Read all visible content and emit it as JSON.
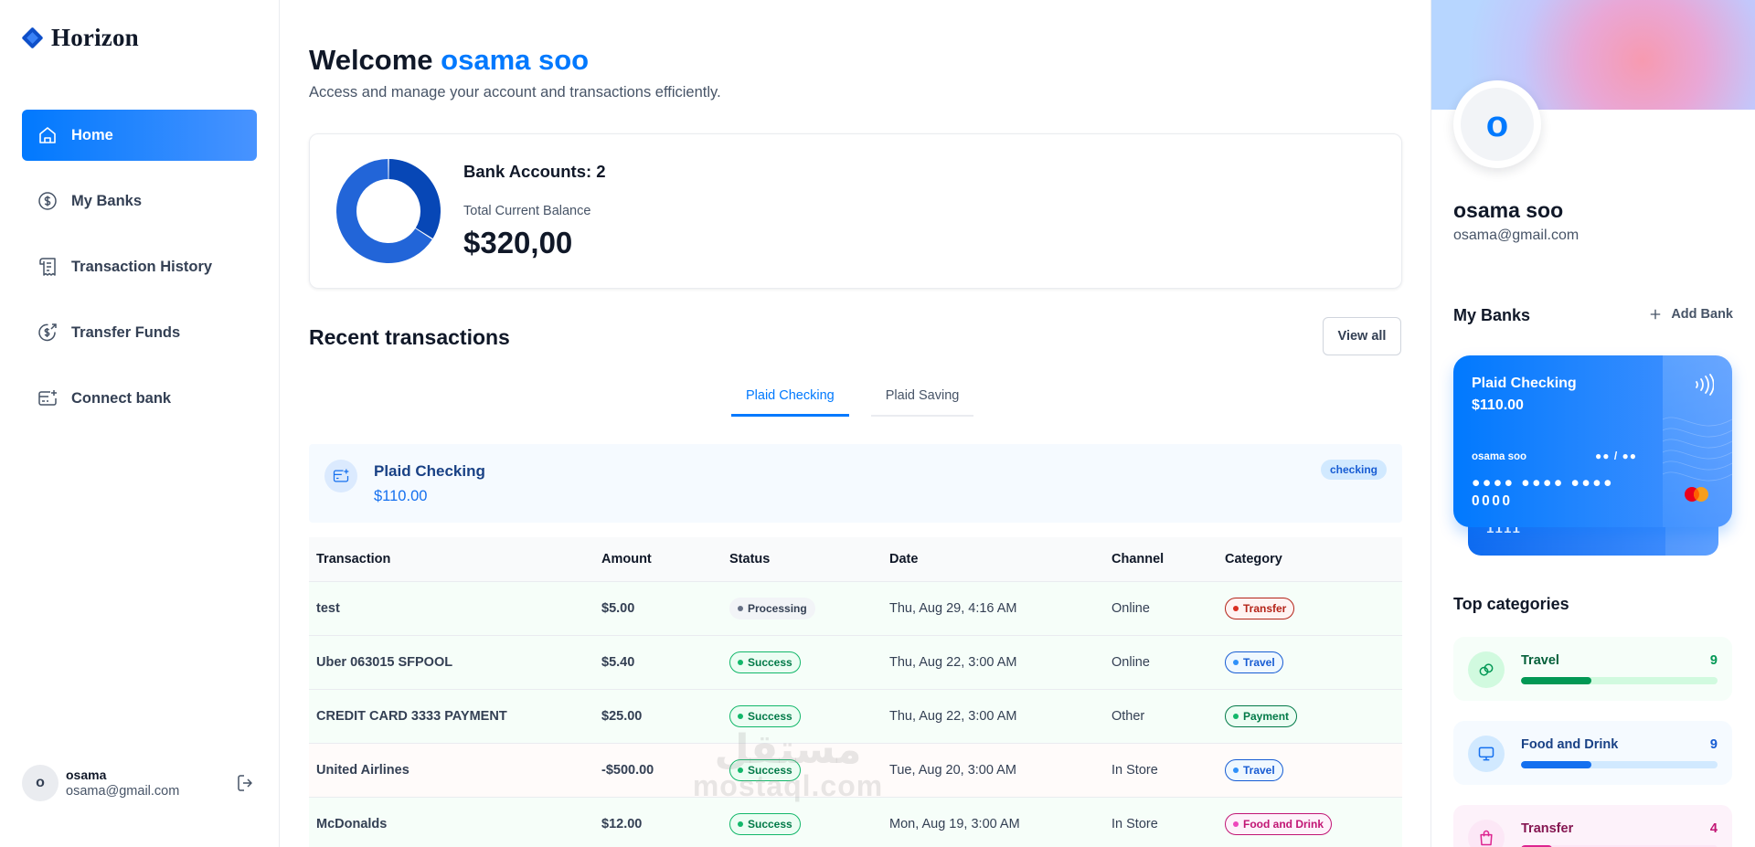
{
  "app": {
    "name": "Horizon"
  },
  "sidebar": {
    "items": [
      {
        "label": "Home",
        "icon": "home-icon",
        "active": true
      },
      {
        "label": "My Banks",
        "icon": "dollar-circle-icon",
        "active": false
      },
      {
        "label": "Transaction History",
        "icon": "receipt-icon",
        "active": false
      },
      {
        "label": "Transfer Funds",
        "icon": "money-send-icon",
        "active": false
      },
      {
        "label": "Connect bank",
        "icon": "card-add-icon",
        "active": false
      }
    ],
    "user": {
      "initial": "o",
      "name": "osama",
      "email": "osama@gmail.com"
    }
  },
  "header": {
    "greeting": "Welcome",
    "user_name": "osama soo",
    "subtext": "Access and manage your account and transactions efficiently."
  },
  "balance": {
    "accounts_label": "Bank Accounts: 2",
    "total_label": "Total Current Balance",
    "total_amount": "$320,00"
  },
  "recent": {
    "title": "Recent transactions",
    "view_all": "View all",
    "tabs": [
      "Plaid Checking",
      "Plaid Saving"
    ],
    "active_tab": 0,
    "account": {
      "name": "Plaid Checking",
      "balance": "$110.00",
      "type_badge": "checking"
    },
    "columns": [
      "Transaction",
      "Amount",
      "Status",
      "Date",
      "Channel",
      "Category"
    ],
    "rows": [
      {
        "name": "test",
        "amount": "$5.00",
        "status": "Processing",
        "date": "Thu, Aug 29, 4:16 AM",
        "channel": "Online",
        "category": "Transfer"
      },
      {
        "name": "Uber 063015 SFPOOL",
        "amount": "$5.40",
        "status": "Success",
        "date": "Thu, Aug 22, 3:00 AM",
        "channel": "Online",
        "category": "Travel"
      },
      {
        "name": "CREDIT CARD 3333 PAYMENT",
        "amount": "$25.00",
        "status": "Success",
        "date": "Thu, Aug 22, 3:00 AM",
        "channel": "Other",
        "category": "Payment"
      },
      {
        "name": "United Airlines",
        "amount": "-$500.00",
        "status": "Success",
        "date": "Tue, Aug 20, 3:00 AM",
        "channel": "In Store",
        "category": "Travel"
      },
      {
        "name": "McDonalds",
        "amount": "$12.00",
        "status": "Success",
        "date": "Mon, Aug 19, 3:00 AM",
        "channel": "In Store",
        "category": "Food and Drink"
      }
    ]
  },
  "watermark": {
    "arabic": "مستقل",
    "latin": "mostaql.com"
  },
  "profile": {
    "initial": "o",
    "name": "osama soo",
    "email": "osama@gmail.com"
  },
  "banks": {
    "title": "My Banks",
    "add_label": "Add Bank",
    "card": {
      "name": "Plaid Checking",
      "balance": "$110.00",
      "owner": "osama soo",
      "expiry": "●● / ●●",
      "number": "●●●● ●●●● ●●●● 0000"
    },
    "back_card_text": "1111"
  },
  "categories": {
    "title": "Top categories",
    "items": [
      {
        "name": "Travel",
        "count": "9",
        "fill": 0.36,
        "icon": "link-icon"
      },
      {
        "name": "Food and Drink",
        "count": "9",
        "fill": 0.36,
        "icon": "monitor-icon"
      },
      {
        "name": "Transfer",
        "count": "4",
        "fill": 0.16,
        "icon": "bag-icon"
      }
    ]
  },
  "colors": {
    "accent": "#0179fe",
    "positive": "#039855",
    "negative": "#f04438"
  }
}
